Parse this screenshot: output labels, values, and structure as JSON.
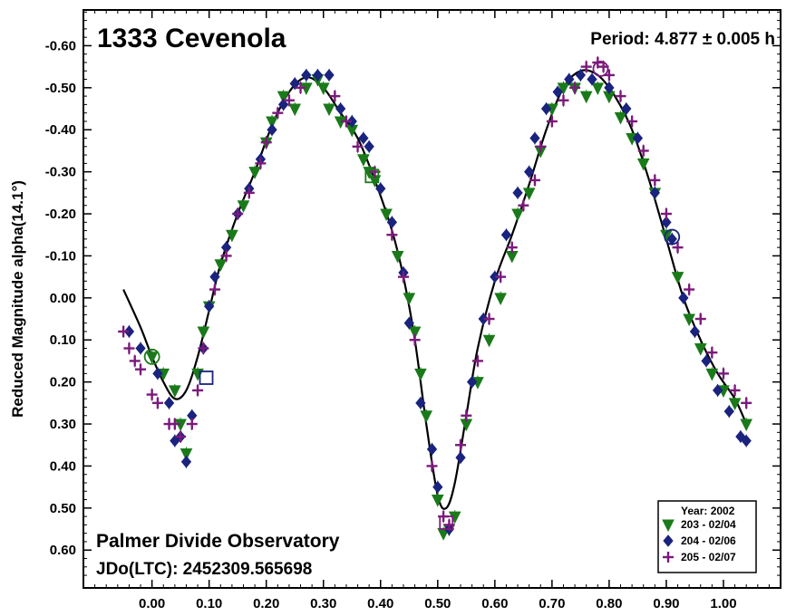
{
  "chart_data": {
    "type": "scatter",
    "title": "1333 Cevenola",
    "period_text": "Period: 4.877 ± 0.005 h",
    "ylabel": "Reduced Magnitude alpha(14.1°)",
    "xlabel": "",
    "observatory": "Palmer Divide Observatory",
    "epoch_text": "JDo(LTC): 2452309.565698",
    "xlim": [
      -0.12,
      1.1
    ],
    "ylim": [
      0.69,
      -0.685
    ],
    "y_inverted": true,
    "x_ticks": [
      0.0,
      0.1,
      0.2,
      0.3,
      0.4,
      0.5,
      0.6,
      0.7,
      0.8,
      0.9,
      1.0
    ],
    "x_tick_labels": [
      "0.00",
      "0.10",
      "0.20",
      "0.30",
      "0.40",
      "0.50",
      "0.60",
      "0.70",
      "0.80",
      "0.90",
      "1.00"
    ],
    "y_ticks": [
      -0.6,
      -0.5,
      -0.4,
      -0.3,
      -0.2,
      -0.1,
      0.0,
      0.1,
      0.2,
      0.3,
      0.4,
      0.5,
      0.6
    ],
    "y_tick_labels": [
      "-0.60",
      "-0.50",
      "-0.40",
      "-0.30",
      "-0.20",
      "-0.10",
      "0.00",
      "0.10",
      "0.20",
      "0.30",
      "0.40",
      "0.50",
      "0.60"
    ],
    "legend": {
      "title": "Year: 2002",
      "placement": "bottom-right",
      "entries": [
        "203 - 02/04",
        "204 - 02/06",
        "205 - 02/07"
      ]
    },
    "grid": false,
    "series": [
      {
        "name": "203 - 02/04",
        "marker": "triangle-down",
        "color": "#1a7a1a",
        "points": [
          [
            0.0,
            0.14
          ],
          [
            0.02,
            0.18
          ],
          [
            0.04,
            0.22
          ],
          [
            0.05,
            0.3
          ],
          [
            0.06,
            0.37
          ],
          [
            0.08,
            0.18
          ],
          [
            0.09,
            0.08
          ],
          [
            0.1,
            0.02
          ],
          [
            0.12,
            -0.08
          ],
          [
            0.14,
            -0.15
          ],
          [
            0.16,
            -0.22
          ],
          [
            0.18,
            -0.3
          ],
          [
            0.2,
            -0.37
          ],
          [
            0.21,
            -0.42
          ],
          [
            0.23,
            -0.48
          ],
          [
            0.25,
            -0.45
          ],
          [
            0.27,
            -0.5
          ],
          [
            0.29,
            -0.52
          ],
          [
            0.3,
            -0.5
          ],
          [
            0.31,
            -0.45
          ],
          [
            0.33,
            -0.42
          ],
          [
            0.35,
            -0.4
          ],
          [
            0.37,
            -0.33
          ],
          [
            0.38,
            -0.3
          ],
          [
            0.39,
            -0.28
          ],
          [
            0.41,
            -0.2
          ],
          [
            0.43,
            -0.1
          ],
          [
            0.45,
            0.0
          ],
          [
            0.46,
            0.08
          ],
          [
            0.47,
            0.18
          ],
          [
            0.48,
            0.28
          ],
          [
            0.5,
            0.48
          ],
          [
            0.51,
            0.56
          ],
          [
            0.52,
            0.55
          ],
          [
            0.53,
            0.52
          ],
          [
            0.55,
            0.3
          ],
          [
            0.57,
            0.2
          ],
          [
            0.59,
            0.1
          ],
          [
            0.61,
            0.0
          ],
          [
            0.63,
            -0.1
          ],
          [
            0.64,
            -0.2
          ],
          [
            0.66,
            -0.25
          ],
          [
            0.68,
            -0.35
          ],
          [
            0.7,
            -0.45
          ],
          [
            0.72,
            -0.5
          ],
          [
            0.74,
            -0.5
          ],
          [
            0.76,
            -0.48
          ],
          [
            0.78,
            -0.5
          ],
          [
            0.8,
            -0.48
          ],
          [
            0.82,
            -0.43
          ],
          [
            0.84,
            -0.38
          ],
          [
            0.86,
            -0.32
          ],
          [
            0.88,
            -0.25
          ],
          [
            0.9,
            -0.15
          ],
          [
            0.92,
            -0.05
          ],
          [
            0.94,
            0.05
          ],
          [
            0.96,
            0.12
          ],
          [
            0.98,
            0.18
          ],
          [
            1.0,
            0.22
          ],
          [
            1.02,
            0.25
          ],
          [
            1.04,
            0.3
          ]
        ]
      },
      {
        "name": "204 - 02/06",
        "marker": "diamond",
        "color": "#1a237e",
        "points": [
          [
            -0.04,
            0.08
          ],
          [
            -0.02,
            0.12
          ],
          [
            0.01,
            0.18
          ],
          [
            0.03,
            0.25
          ],
          [
            0.04,
            0.34
          ],
          [
            0.05,
            0.33
          ],
          [
            0.06,
            0.39
          ],
          [
            0.07,
            0.28
          ],
          [
            0.09,
            0.12
          ],
          [
            0.1,
            0.02
          ],
          [
            0.11,
            -0.05
          ],
          [
            0.13,
            -0.12
          ],
          [
            0.15,
            -0.2
          ],
          [
            0.17,
            -0.26
          ],
          [
            0.19,
            -0.33
          ],
          [
            0.21,
            -0.4
          ],
          [
            0.23,
            -0.46
          ],
          [
            0.25,
            -0.51
          ],
          [
            0.27,
            -0.53
          ],
          [
            0.29,
            -0.53
          ],
          [
            0.31,
            -0.53
          ],
          [
            0.33,
            -0.45
          ],
          [
            0.35,
            -0.42
          ],
          [
            0.37,
            -0.38
          ],
          [
            0.38,
            -0.36
          ],
          [
            0.4,
            -0.26
          ],
          [
            0.42,
            -0.18
          ],
          [
            0.44,
            -0.06
          ],
          [
            0.45,
            0.06
          ],
          [
            0.47,
            0.25
          ],
          [
            0.49,
            0.36
          ],
          [
            0.5,
            0.45
          ],
          [
            0.52,
            0.55
          ],
          [
            0.54,
            0.38
          ],
          [
            0.56,
            0.2
          ],
          [
            0.58,
            0.05
          ],
          [
            0.6,
            -0.05
          ],
          [
            0.62,
            -0.15
          ],
          [
            0.64,
            -0.25
          ],
          [
            0.66,
            -0.3
          ],
          [
            0.67,
            -0.38
          ],
          [
            0.69,
            -0.45
          ],
          [
            0.71,
            -0.49
          ],
          [
            0.73,
            -0.52
          ],
          [
            0.75,
            -0.53
          ],
          [
            0.77,
            -0.52
          ],
          [
            0.8,
            -0.5
          ],
          [
            0.83,
            -0.45
          ],
          [
            0.85,
            -0.38
          ],
          [
            0.88,
            -0.25
          ],
          [
            0.9,
            -0.18
          ],
          [
            0.91,
            -0.14
          ],
          [
            0.93,
            0.0
          ],
          [
            0.95,
            0.08
          ],
          [
            0.97,
            0.15
          ],
          [
            0.99,
            0.22
          ],
          [
            1.01,
            0.27
          ],
          [
            1.03,
            0.33
          ],
          [
            1.04,
            0.34
          ]
        ]
      },
      {
        "name": "205 - 02/07",
        "marker": "plus",
        "color": "#7b1a7b",
        "points": [
          [
            -0.05,
            0.08
          ],
          [
            -0.04,
            0.12
          ],
          [
            -0.03,
            0.15
          ],
          [
            -0.02,
            0.17
          ],
          [
            0.0,
            0.23
          ],
          [
            0.01,
            0.25
          ],
          [
            0.03,
            0.3
          ],
          [
            0.04,
            0.3
          ],
          [
            0.05,
            0.33
          ],
          [
            0.07,
            0.3
          ],
          [
            0.08,
            0.22
          ],
          [
            0.09,
            0.12
          ],
          [
            0.11,
            -0.02
          ],
          [
            0.13,
            -0.1
          ],
          [
            0.15,
            -0.2
          ],
          [
            0.17,
            -0.25
          ],
          [
            0.19,
            -0.32
          ],
          [
            0.2,
            -0.37
          ],
          [
            0.22,
            -0.44
          ],
          [
            0.24,
            -0.47
          ],
          [
            0.26,
            -0.5
          ],
          [
            0.32,
            -0.48
          ],
          [
            0.34,
            -0.42
          ],
          [
            0.36,
            -0.36
          ],
          [
            0.39,
            -0.3
          ],
          [
            0.42,
            -0.15
          ],
          [
            0.44,
            -0.05
          ],
          [
            0.46,
            0.1
          ],
          [
            0.49,
            0.4
          ],
          [
            0.51,
            0.52
          ],
          [
            0.52,
            0.54
          ],
          [
            0.54,
            0.35
          ],
          [
            0.55,
            0.28
          ],
          [
            0.57,
            0.15
          ],
          [
            0.59,
            0.05
          ],
          [
            0.61,
            -0.05
          ],
          [
            0.63,
            -0.12
          ],
          [
            0.65,
            -0.22
          ],
          [
            0.67,
            -0.28
          ],
          [
            0.68,
            -0.36
          ],
          [
            0.7,
            -0.42
          ],
          [
            0.72,
            -0.47
          ],
          [
            0.74,
            -0.5
          ],
          [
            0.76,
            -0.55
          ],
          [
            0.78,
            -0.56
          ],
          [
            0.79,
            -0.55
          ],
          [
            0.8,
            -0.53
          ],
          [
            0.82,
            -0.48
          ],
          [
            0.84,
            -0.42
          ],
          [
            0.86,
            -0.35
          ],
          [
            0.88,
            -0.28
          ],
          [
            0.9,
            -0.2
          ],
          [
            0.92,
            -0.12
          ],
          [
            0.94,
            -0.02
          ],
          [
            0.96,
            0.05
          ],
          [
            0.98,
            0.13
          ],
          [
            1.0,
            0.18
          ],
          [
            1.02,
            0.22
          ],
          [
            1.04,
            0.25
          ]
        ]
      }
    ],
    "fit_curve": {
      "name": "fourier fit",
      "points": [
        [
          -0.05,
          -0.02
        ],
        [
          -0.02,
          0.07
        ],
        [
          0.0,
          0.14
        ],
        [
          0.02,
          0.2
        ],
        [
          0.04,
          0.24
        ],
        [
          0.06,
          0.22
        ],
        [
          0.08,
          0.14
        ],
        [
          0.1,
          0.03
        ],
        [
          0.12,
          -0.08
        ],
        [
          0.15,
          -0.2
        ],
        [
          0.18,
          -0.3
        ],
        [
          0.21,
          -0.41
        ],
        [
          0.24,
          -0.49
        ],
        [
          0.27,
          -0.525
        ],
        [
          0.3,
          -0.5
        ],
        [
          0.33,
          -0.44
        ],
        [
          0.36,
          -0.38
        ],
        [
          0.39,
          -0.28
        ],
        [
          0.42,
          -0.16
        ],
        [
          0.44,
          -0.05
        ],
        [
          0.46,
          0.1
        ],
        [
          0.48,
          0.3
        ],
        [
          0.5,
          0.47
        ],
        [
          0.515,
          0.5
        ],
        [
          0.53,
          0.44
        ],
        [
          0.55,
          0.28
        ],
        [
          0.57,
          0.12
        ],
        [
          0.6,
          -0.04
        ],
        [
          0.63,
          -0.15
        ],
        [
          0.66,
          -0.27
        ],
        [
          0.69,
          -0.4
        ],
        [
          0.72,
          -0.5
        ],
        [
          0.75,
          -0.54
        ],
        [
          0.78,
          -0.53
        ],
        [
          0.81,
          -0.48
        ],
        [
          0.84,
          -0.4
        ],
        [
          0.87,
          -0.28
        ],
        [
          0.9,
          -0.14
        ],
        [
          0.93,
          0.0
        ],
        [
          0.96,
          0.1
        ],
        [
          0.99,
          0.18
        ],
        [
          1.02,
          0.24
        ],
        [
          1.04,
          0.3
        ]
      ]
    },
    "highlight_markers": [
      {
        "x": 0.0,
        "y": 0.14,
        "shape": "circle",
        "color": "#1a7a1a"
      },
      {
        "x": 0.095,
        "y": 0.19,
        "shape": "square",
        "color": "#1a237e"
      },
      {
        "x": 0.385,
        "y": -0.29,
        "shape": "square",
        "color": "#1a7a1a"
      },
      {
        "x": 0.515,
        "y": 0.535,
        "shape": "square",
        "color": "#7b1a7b"
      },
      {
        "x": 0.785,
        "y": -0.545,
        "shape": "circle",
        "color": "#7b1a7b"
      },
      {
        "x": 0.91,
        "y": -0.145,
        "shape": "circle",
        "color": "#1a237e"
      }
    ]
  }
}
